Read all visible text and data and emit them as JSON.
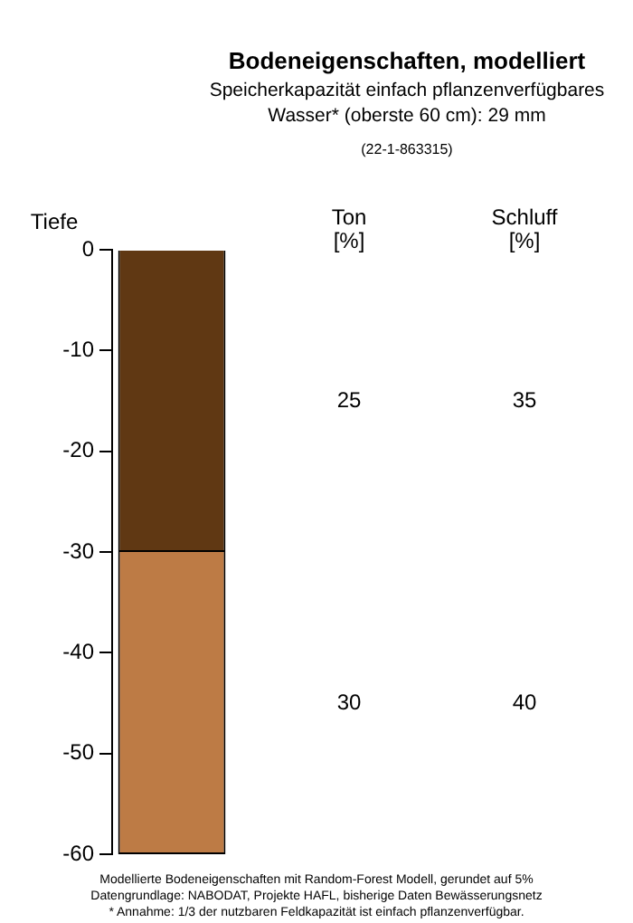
{
  "chart_data": {
    "type": "bar",
    "title": "Bodeneigenschaften, modelliert",
    "subtitle": "Speicherkapazität einfach pflanzenverfügbares Wasser* (oberste 60 cm): 29 mm",
    "ylabel": "Tiefe",
    "categories": [
      null
    ],
    "stacked": true,
    "series": [
      {
        "color": "#603813",
        "values": [
          -30
        ]
      },
      {
        "color": "#bd7b45",
        "values": [
          -30
        ]
      }
    ],
    "ylim": [
      -60,
      0
    ],
    "yticks": [
      0,
      -10,
      -20,
      -30,
      -40,
      -50,
      -60
    ],
    "grid": false,
    "legend": false,
    "tick_labels": "y",
    "annotations": [
      "(22-1-863315)",
      "Ton\n[%]",
      "Schluff\n[%]",
      "25",
      "35",
      "30",
      "40",
      "Modellierte Bodeneigenschaften mit Random-Forest Modell, gerundet auf 5%",
      "Datengrundlage: NABODAT, Projekte HAFL, bisherige Daten Bewässerungsnetz",
      "* Annahme: 1/3 der nutzbaren Feldkapazität ist einfach pflanzenverfügbar."
    ]
  }
}
